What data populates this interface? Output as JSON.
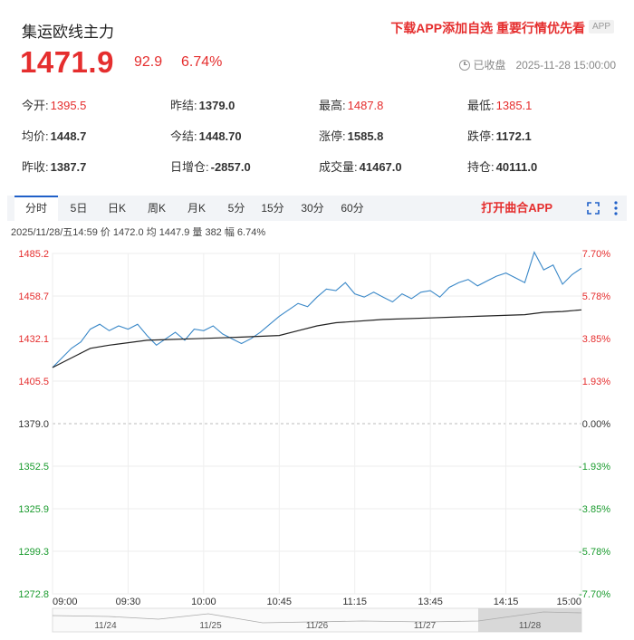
{
  "header": {
    "title": "集运欧线主力",
    "promo": "下载APP添加自选  重要行情优先看",
    "app_badge": "APP",
    "price": "1471.9",
    "change": "92.9",
    "change_pct": "6.74%",
    "status": "已收盘",
    "datetime": "2025-11-28 15:00:00",
    "status_icon": "clock-icon"
  },
  "stats": [
    {
      "label": "今开:",
      "value": "1395.5",
      "color": "red"
    },
    {
      "label": "昨结:",
      "value": "1379.0",
      "color": "dark"
    },
    {
      "label": "最高:",
      "value": "1487.8",
      "color": "red"
    },
    {
      "label": "最低:",
      "value": "1385.1",
      "color": "red"
    },
    {
      "label": "均价:",
      "value": "1448.7",
      "color": "dark"
    },
    {
      "label": "今结:",
      "value": "1448.70",
      "color": "dark"
    },
    {
      "label": "涨停:",
      "value": "1585.8",
      "color": "dark"
    },
    {
      "label": "跌停:",
      "value": "1172.1",
      "color": "dark"
    },
    {
      "label": "昨收:",
      "value": "1387.7",
      "color": "dark"
    },
    {
      "label": "日增仓:",
      "value": "-2857.0",
      "color": "dark"
    },
    {
      "label": "成交量:",
      "value": "41467.0",
      "color": "dark"
    },
    {
      "label": "持仓:",
      "value": "40111.0",
      "color": "dark"
    }
  ],
  "tabs": [
    "分时",
    "5日",
    "日K",
    "周K",
    "月K",
    "5分",
    "15分",
    "30分",
    "60分"
  ],
  "active_tab": "分时",
  "open_app": "打开曲合APP",
  "infoline": "2025/11/28/五14:59  价 1472.0  均 1447.9  量 382  幅 6.74%",
  "colors": {
    "up": "#e52e2e",
    "down": "#1a9b2e",
    "price_line": "#3a88c8",
    "avg_line": "#222222",
    "accent": "#2060c8"
  },
  "chart_data": {
    "type": "line",
    "y_ticks": [
      "1485.2",
      "1458.7",
      "1432.1",
      "1405.5",
      "1379.0",
      "1352.5",
      "1325.9",
      "1299.3",
      "1272.8"
    ],
    "pct_ticks": [
      "7.70%",
      "5.78%",
      "3.85%",
      "1.93%",
      "0.00%",
      "-1.93%",
      "-3.85%",
      "-5.78%",
      "-7.70%"
    ],
    "ylim": [
      1272.8,
      1485.2
    ],
    "baseline": 1379.0,
    "x_ticks": [
      "09:00",
      "09:30",
      "10:00",
      "10:45",
      "11:15",
      "13:45",
      "14:15",
      "15:00"
    ],
    "navigator_dates": [
      "11/24",
      "11/25",
      "11/26",
      "11/27",
      "11/28"
    ],
    "series": [
      {
        "name": "价",
        "x": [
          0,
          4,
          8,
          12,
          16,
          20,
          24,
          28,
          32,
          36,
          40,
          44,
          48,
          52,
          56,
          60,
          64,
          68,
          72,
          76,
          80,
          84,
          88,
          92,
          96,
          100,
          104,
          108,
          112,
          116,
          120,
          124,
          128,
          132,
          136,
          140,
          144,
          148,
          152,
          156,
          160,
          164,
          168,
          172,
          176,
          180,
          184,
          188,
          192,
          196,
          200,
          204,
          208,
          212,
          216,
          220,
          224
        ],
        "values": [
          1414,
          1420,
          1426,
          1430,
          1438,
          1441,
          1437,
          1440,
          1438,
          1441,
          1434,
          1428,
          1432,
          1436,
          1431,
          1438,
          1437,
          1440,
          1435,
          1432,
          1429,
          1432,
          1436,
          1441,
          1446,
          1450,
          1454,
          1452,
          1458,
          1463,
          1462,
          1467,
          1460,
          1458,
          1461,
          1458,
          1455,
          1460,
          1457,
          1461,
          1462,
          1458,
          1464,
          1467,
          1469,
          1465,
          1468,
          1471,
          1473,
          1470,
          1467,
          1486,
          1475,
          1478,
          1466,
          1472,
          1476
        ]
      },
      {
        "name": "均",
        "x": [
          0,
          8,
          16,
          24,
          40,
          60,
          80,
          96,
          104,
          112,
          120,
          140,
          160,
          180,
          200,
          208,
          216,
          224
        ],
        "values": [
          1414,
          1420,
          1426,
          1428,
          1431,
          1432,
          1433,
          1434,
          1437,
          1440,
          1442,
          1444,
          1445,
          1446,
          1447,
          1448.5,
          1449,
          1450
        ]
      }
    ]
  }
}
